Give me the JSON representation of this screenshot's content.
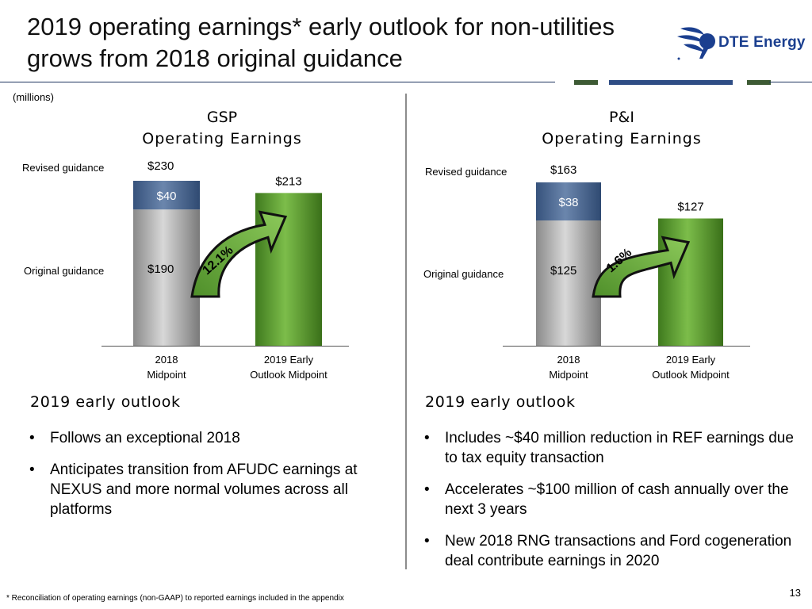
{
  "title": {
    "line1": "2019 operating earnings* early outlook for non-utilities",
    "line2": "grows from 2018 original guidance"
  },
  "logo": {
    "text": "DTE Energy",
    "icon": "dte-logo-icon"
  },
  "units": "(millions)",
  "colors": {
    "gray_bar": "#a8a8a8",
    "blue_bar": "#4a6791",
    "green_bar": "#5f9a32",
    "arrow_green": "#6aa63a",
    "header_rule": "#1e3560"
  },
  "chart_data": [
    {
      "type": "bar",
      "title_line1": "GSP",
      "title_line2": "Operating Earnings",
      "categories": [
        "2018 Midpoint",
        "2019 Early Outlook Midpoint"
      ],
      "category_lines": [
        [
          "2018",
          "Midpoint"
        ],
        [
          "2019 Early",
          "Outlook Midpoint"
        ]
      ],
      "series": [
        {
          "name": "Original guidance",
          "values": [
            190,
            null
          ]
        },
        {
          "name": "Revised guidance increment",
          "values": [
            40,
            null
          ]
        },
        {
          "name": "2019 Early Outlook",
          "values": [
            null,
            213
          ]
        }
      ],
      "labels": {
        "revised": "Revised guidance",
        "original": "Original guidance",
        "revised_value": "$230",
        "increment_value": "$40",
        "original_value": "$190",
        "outlook_value": "$213",
        "growth": "12.1%"
      },
      "ylim": [
        0,
        260
      ]
    },
    {
      "type": "bar",
      "title_line1": "P&I",
      "title_line2": "Operating Earnings",
      "categories": [
        "2018 Midpoint",
        "2019 Early Outlook Midpoint"
      ],
      "category_lines": [
        [
          "2018",
          "Midpoint"
        ],
        [
          "2019 Early",
          "Outlook Midpoint"
        ]
      ],
      "series": [
        {
          "name": "Original guidance",
          "values": [
            125,
            null
          ]
        },
        {
          "name": "Revised guidance increment",
          "values": [
            38,
            null
          ]
        },
        {
          "name": "2019 Early Outlook",
          "values": [
            null,
            127
          ]
        }
      ],
      "labels": {
        "revised": "Revised guidance",
        "original": "Original guidance",
        "revised_value": "$163",
        "increment_value": "$38",
        "original_value": "$125",
        "outlook_value": "$127",
        "growth": "1.6%"
      },
      "ylim": [
        0,
        185
      ]
    }
  ],
  "left_outlook": {
    "heading": "2019 early outlook",
    "bullets": [
      "Follows an exceptional 2018",
      "Anticipates transition from AFUDC earnings at NEXUS and more normal volumes across all platforms"
    ]
  },
  "right_outlook": {
    "heading": "2019 early outlook",
    "bullets": [
      "Includes ~$40 million reduction in REF earnings due to tax equity transaction",
      "Accelerates ~$100 million of cash annually over the next 3 years",
      "New 2018 RNG transactions and Ford cogeneration deal contribute earnings in 2020"
    ]
  },
  "footnote": "* Reconciliation of operating earnings (non-GAAP) to reported earnings included in the appendix",
  "page_number": "13"
}
